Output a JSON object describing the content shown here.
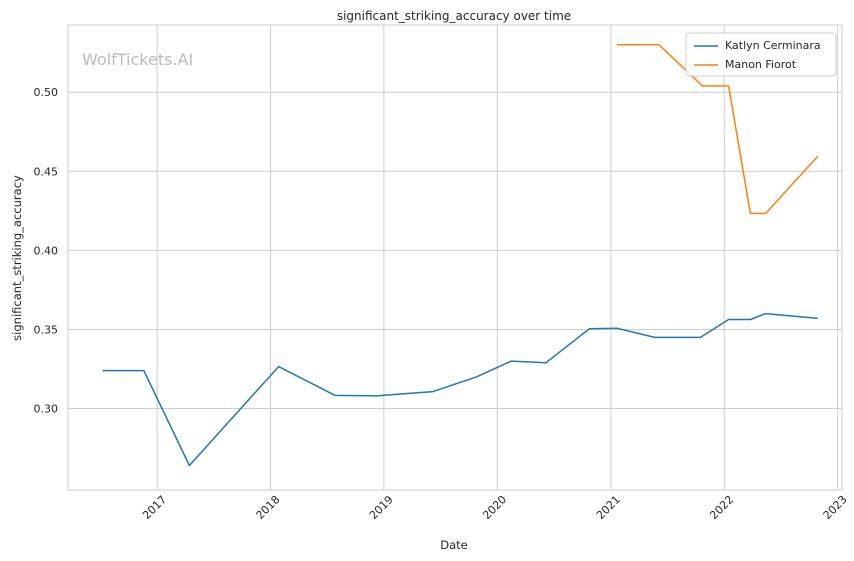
{
  "chart_data": {
    "type": "line",
    "title": "significant_striking_accuracy over time",
    "xlabel": "Date",
    "ylabel": "significant_striking_accuracy",
    "watermark": "WolfTickets.AI",
    "xlim": [
      "2016-03-20",
      "2023-01-15"
    ],
    "ylim": [
      0.2485,
      0.5425
    ],
    "x_ticks": [
      "2017",
      "2018",
      "2019",
      "2020",
      "2021",
      "2022",
      "2023"
    ],
    "x_tick_dates": [
      "2017-01-01",
      "2018-01-01",
      "2019-01-01",
      "2020-01-01",
      "2021-01-01",
      "2022-01-01",
      "2023-01-01"
    ],
    "y_ticks": [
      0.3,
      0.35,
      0.4,
      0.45,
      0.5
    ],
    "y_tick_labels": [
      "0.30",
      "0.35",
      "0.40",
      "0.45",
      "0.50"
    ],
    "grid": true,
    "legend_position": "top-right",
    "series": [
      {
        "name": "Katlyn Cerminara",
        "color": "#1f77b4",
        "points": [
          [
            "2016-07-09",
            0.324
          ],
          [
            "2016-11-19",
            0.324
          ],
          [
            "2017-04-15",
            0.264
          ],
          [
            "2018-01-27",
            0.3265
          ],
          [
            "2018-07-28",
            0.3083
          ],
          [
            "2018-12-08",
            0.308
          ],
          [
            "2019-06-08",
            0.3107
          ],
          [
            "2019-10-26",
            0.32
          ],
          [
            "2020-02-15",
            0.33
          ],
          [
            "2020-06-06",
            0.329
          ],
          [
            "2020-10-24",
            0.3505
          ],
          [
            "2021-01-20",
            0.3508
          ],
          [
            "2021-05-22",
            0.345
          ],
          [
            "2021-10-16",
            0.345
          ],
          [
            "2022-01-15",
            0.3563
          ],
          [
            "2022-03-26",
            0.3563
          ],
          [
            "2022-05-14",
            0.36
          ],
          [
            "2022-10-29",
            0.357
          ]
        ]
      },
      {
        "name": "Manon Fiorot",
        "color": "#ff7f0e",
        "points": [
          [
            "2021-01-20",
            0.53
          ],
          [
            "2021-06-05",
            0.53
          ],
          [
            "2021-10-23",
            0.504
          ],
          [
            "2022-01-15",
            0.504
          ],
          [
            "2022-03-26",
            0.4233
          ],
          [
            "2022-05-14",
            0.4233
          ],
          [
            "2022-10-29",
            0.4595
          ]
        ]
      }
    ]
  }
}
